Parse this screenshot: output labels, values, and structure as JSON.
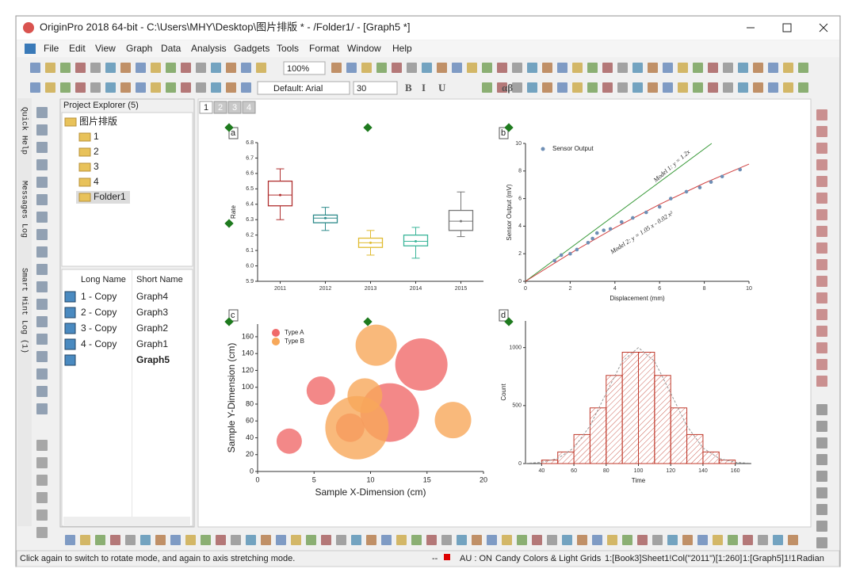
{
  "window": {
    "title": "OriginPro 2018 64-bit - C:\\Users\\MHY\\Desktop\\图片排版 * - /Folder1/ - [Graph5 *]",
    "menu": [
      "File",
      "Edit",
      "View",
      "Graph",
      "Data",
      "Analysis",
      "Gadgets",
      "Tools",
      "Format",
      "Window",
      "Help"
    ]
  },
  "toolbar": {
    "zoom": "100%",
    "font": "Default: Arial",
    "font_size": "30",
    "style": [
      "B",
      "I",
      "U",
      "αβ"
    ]
  },
  "side_tabs": [
    "Quick Help",
    "Messages Log",
    "Smart Hint Log (1)"
  ],
  "explorer": {
    "title": "Project Explorer (5)",
    "tree": [
      "图片排版",
      "1",
      "2",
      "3",
      "4",
      "Folder1"
    ],
    "columns": [
      "Long Name",
      "Short Name"
    ],
    "rows": [
      {
        "long": "1 - Copy",
        "short": "Graph4"
      },
      {
        "long": "2 - Copy",
        "short": "Graph3"
      },
      {
        "long": "3 - Copy",
        "short": "Graph2"
      },
      {
        "long": "4 - Copy",
        "short": "Graph1"
      },
      {
        "short": "Graph5"
      }
    ]
  },
  "page_tabs": [
    "1",
    "2",
    "3",
    "4"
  ],
  "panels": [
    {
      "label": "a",
      "type": "box",
      "y_label": "Rate",
      "categories": [
        "2011",
        "2012",
        "2013",
        "2014",
        "2015"
      ],
      "ylim": [
        5.9,
        6.8
      ],
      "yticks": [
        5.9,
        {
          "value": 6,
          "label": "6.0"
        },
        6.1,
        6.2,
        6.3,
        6.4,
        6.5,
        6.6,
        6.7,
        6.8
      ],
      "boxes": [
        {
          "color": "#b03030",
          "min": 6.3,
          "q1": 6.39,
          "median": 6.46,
          "mean": 6.46,
          "q3": 6.55,
          "max": 6.63
        },
        {
          "color": "#2e8b8b",
          "min": 6.23,
          "q1": 6.28,
          "median": 6.31,
          "mean": 6.31,
          "q3": 6.33,
          "max": 6.38
        },
        {
          "color": "#e0bb30",
          "min": 6.07,
          "q1": 6.12,
          "median": 6.15,
          "mean": 6.15,
          "q3": 6.18,
          "max": 6.23
        },
        {
          "color": "#3cb59a",
          "min": 6.05,
          "q1": 6.13,
          "median": 6.16,
          "mean": 6.16,
          "q3": 6.2,
          "max": 6.25
        },
        {
          "color": "#777777",
          "min": 6.19,
          "q1": 6.23,
          "median": 6.29,
          "mean": 6.29,
          "q3": 6.36,
          "max": 6.48
        }
      ]
    },
    {
      "label": "b",
      "type": "scatter",
      "x_label": "Displacement (mm)",
      "y_label": "Sensor Output (mV)",
      "xlim": [
        0,
        10
      ],
      "xticks": [
        0,
        2,
        4,
        6,
        8,
        10
      ],
      "ylim": [
        0,
        10
      ],
      "yticks": [
        0,
        2,
        4,
        6,
        8,
        10
      ],
      "series": [
        {
          "name": "Sensor Output",
          "color": "#6f8fb5",
          "x": [
            1.3,
            1.6,
            2.0,
            2.3,
            2.8,
            3.0,
            3.2,
            3.5,
            3.8,
            4.3,
            4.8,
            5.4,
            6.0,
            6.5,
            7.2,
            7.8,
            8.3,
            8.8,
            9.6
          ],
          "y": [
            1.5,
            1.9,
            2.0,
            2.3,
            2.8,
            3.1,
            3.5,
            3.7,
            3.8,
            4.3,
            4.6,
            5.0,
            5.4,
            6.0,
            6.5,
            6.8,
            7.2,
            7.6,
            8.1
          ]
        }
      ],
      "lines": [
        {
          "name": "Model 1: y = 1.2x",
          "color": "#3a9a3a",
          "x": [
            0,
            8.33
          ],
          "y": [
            0,
            10
          ]
        },
        {
          "name": "Model 2: y = 1.05 x - 0.02 x²",
          "color": "#d04040",
          "x": [
            0,
            2,
            4,
            6,
            8,
            10
          ],
          "y": [
            0,
            2.02,
            3.88,
            5.58,
            7.12,
            8.5
          ]
        }
      ]
    },
    {
      "label": "c",
      "type": "bubble",
      "x_label": "Sample X-Dimension (cm)",
      "y_label": "Sample Y-Dimension (cm)",
      "xlim": [
        0,
        20
      ],
      "xticks": [
        0,
        5,
        10,
        15,
        20
      ],
      "ylim": [
        0,
        175
      ],
      "yticks": [
        0,
        20,
        40,
        60,
        80,
        100,
        120,
        140,
        160
      ],
      "series": [
        {
          "name": "Type A",
          "color": "#f06a6a",
          "x": [
            2.8,
            5.6,
            8.2,
            11.7,
            14.5
          ],
          "y": [
            36,
            96,
            52,
            70,
            127
          ],
          "size": [
            16,
            18,
            18,
            37,
            33
          ]
        },
        {
          "name": "Type B",
          "color": "#f7a85a",
          "x": [
            8.8,
            10.5,
            9.5,
            17.3
          ],
          "y": [
            52,
            150,
            90,
            61
          ],
          "size": [
            40,
            26,
            22,
            23
          ]
        }
      ]
    },
    {
      "label": "d",
      "type": "histogram",
      "x_label": "Time",
      "y_label": "Count",
      "color": "#c0392b",
      "xlim": [
        30,
        170
      ],
      "xticks": [
        40,
        60,
        80,
        100,
        120,
        140,
        160
      ],
      "ylim": [
        0,
        1230
      ],
      "yticks": [
        0,
        500,
        1000
      ],
      "bins": [
        40,
        50,
        60,
        70,
        80,
        90,
        100,
        110,
        120,
        130,
        140,
        150,
        160
      ],
      "counts": [
        30,
        100,
        250,
        480,
        760,
        960,
        960,
        760,
        480,
        250,
        100,
        30
      ],
      "fit": {
        "x": [
          30,
          40,
          50,
          60,
          70,
          80,
          90,
          100,
          110,
          120,
          130,
          140,
          150,
          160,
          170
        ],
        "y": [
          2,
          11,
          44,
          135,
          325,
          607,
          882,
          1000,
          882,
          607,
          325,
          135,
          44,
          11,
          2
        ]
      }
    }
  ],
  "status": {
    "hint": "Click again to switch to rotate mode, and again to axis stretching mode.",
    "items": [
      "--",
      "AU : ON",
      "Candy Colors & Light Grids",
      "1:[Book3]Sheet1!Col(\"2011\")[1:260]",
      "1:[Graph5]1!1",
      "Radian"
    ]
  }
}
